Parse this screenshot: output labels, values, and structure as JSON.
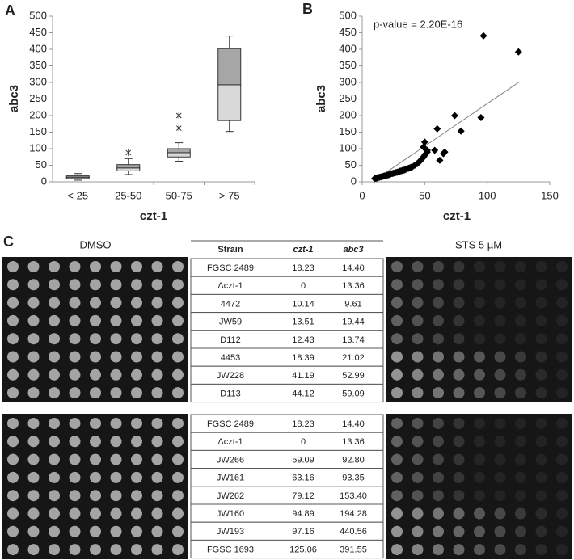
{
  "panel_labels": [
    "A",
    "B",
    "C"
  ],
  "chart_data": [
    {
      "type": "box",
      "ylabel": "abc3",
      "xlabel": "czt-1",
      "categories": [
        "< 25",
        "25-50",
        "50-75",
        "> 75"
      ],
      "boxes": [
        {
          "min": 5,
          "q1": 10,
          "median": 14,
          "q3": 18,
          "max": 25,
          "outliers": []
        },
        {
          "min": 22,
          "q1": 33,
          "median": 42,
          "q3": 52,
          "max": 70,
          "outliers": [
            88
          ]
        },
        {
          "min": 62,
          "q1": 75,
          "median": 88,
          "q3": 100,
          "max": 118,
          "outliers": [
            162,
            200
          ]
        },
        {
          "min": 152,
          "q1": 185,
          "median": 293,
          "q3": 402,
          "max": 440,
          "outliers": []
        }
      ],
      "lower_color": "#d9d9d9",
      "upper_color": "#a6a6a6",
      "ylim": [
        0,
        500
      ],
      "yticks": [
        0,
        50,
        100,
        150,
        200,
        250,
        300,
        350,
        400,
        450,
        500
      ]
    },
    {
      "type": "scatter",
      "ylabel": "abc3",
      "xlabel": "czt-1",
      "annotation": "p-value = 2.20E-16",
      "x": [
        10,
        11,
        12,
        13,
        14,
        15,
        16,
        17,
        18,
        19,
        20,
        21,
        22,
        23,
        24,
        25,
        26,
        27,
        28,
        29,
        30,
        31,
        32,
        33,
        34,
        35,
        36,
        37,
        38,
        39,
        40,
        42,
        44,
        45,
        46,
        47,
        48,
        49,
        50,
        51,
        52,
        49,
        50,
        52,
        60,
        58,
        62,
        65,
        66,
        74,
        79,
        95,
        97,
        125
      ],
      "y": [
        10,
        10,
        12,
        13,
        14,
        15,
        16,
        17,
        18,
        19,
        20,
        21,
        22,
        24,
        25,
        26,
        27,
        28,
        29,
        30,
        32,
        33,
        34,
        35,
        36,
        38,
        40,
        41,
        42,
        44,
        45,
        50,
        55,
        58,
        62,
        66,
        70,
        75,
        80,
        85,
        90,
        105,
        120,
        95,
        160,
        95,
        65,
        85,
        90,
        200,
        153,
        194,
        441,
        392
      ],
      "color": "#000000",
      "trendline": {
        "x": [
          10,
          125
        ],
        "y": [
          5,
          300
        ],
        "color": "#808080"
      },
      "xlim": [
        0,
        150
      ],
      "xticks": [
        0,
        50,
        100,
        150
      ],
      "ylim": [
        0,
        500
      ],
      "yticks": [
        0,
        50,
        100,
        150,
        200,
        250,
        300,
        350,
        400,
        450,
        500
      ]
    }
  ],
  "panel_c": {
    "left_label": "DMSO",
    "right_label": "STS 5 µM",
    "header": [
      "Strain",
      "czt-1",
      "abc3"
    ],
    "tables": [
      [
        [
          "FGSC 2489",
          "18.23",
          "14.40"
        ],
        [
          "Δczt-1",
          "0",
          "13.36"
        ],
        [
          "4472",
          "10.14",
          "9.61"
        ],
        [
          "JW59",
          "13.51",
          "19.44"
        ],
        [
          "D112",
          "12.43",
          "13.74"
        ],
        [
          "4453",
          "18.39",
          "21.02"
        ],
        [
          "JW228",
          "41.19",
          "52.99"
        ],
        [
          "D113",
          "44.12",
          "59.09"
        ]
      ],
      [
        [
          "FGSC 2489",
          "18.23",
          "14.40"
        ],
        [
          "Δczt-1",
          "0",
          "13.36"
        ],
        [
          "JW266",
          "59.09",
          "92.80"
        ],
        [
          "JW161",
          "63.16",
          "93.35"
        ],
        [
          "JW262",
          "79.12",
          "153.40"
        ],
        [
          "JW160",
          "94.89",
          "194.28"
        ],
        [
          "JW193",
          "97.16",
          "440.56"
        ],
        [
          "FGSC 1693",
          "125.06",
          "391.55"
        ]
      ]
    ]
  }
}
